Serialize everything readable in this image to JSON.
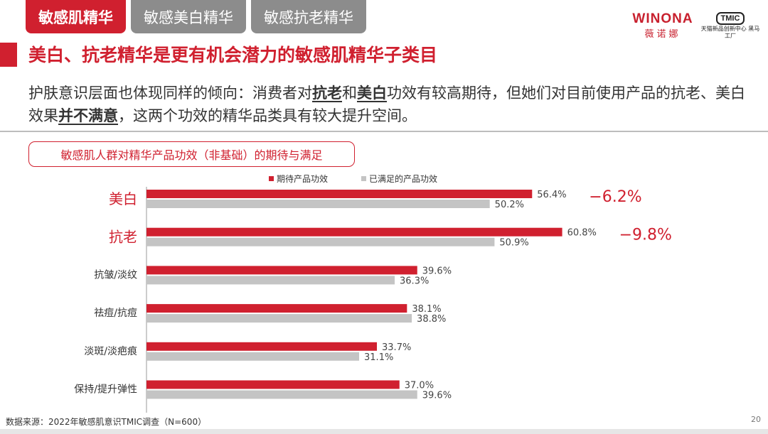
{
  "tabs": [
    {
      "label": "敏感肌精华"
    },
    {
      "label": "敏感美白精华"
    },
    {
      "label": "敏感抗老精华"
    }
  ],
  "brand": {
    "name_en": "WINONA",
    "name_cn": "薇诺娜"
  },
  "tmic": {
    "name": "TMIC",
    "sub": "天猫新品创新中心 黑马工厂"
  },
  "title": "美白、抗老精华是更有机会潜力的敏感肌精华子类目",
  "description": {
    "p1": "护肤意识层面也体现同样的倾向：消费者对",
    "hl1": "抗老",
    "p2": "和",
    "hl2": "美白",
    "p3": "功效有较高期待，但她们对目前使用产品的抗老、美白效果",
    "hl3": "并不满意",
    "p4": "，这两个功效的精华品类具有较大提升空间。"
  },
  "chart_data": {
    "type": "bar",
    "orientation": "horizontal",
    "title": "敏感肌人群对精华产品功效（非基础）的期待与满足",
    "legend_position": "top",
    "categories": [
      "美白",
      "抗老",
      "抗皱/淡纹",
      "祛痘/抗痘",
      "淡斑/淡疤痕",
      "保持/提升弹性"
    ],
    "highlight_categories": [
      "美白",
      "抗老"
    ],
    "series": [
      {
        "name": "期待产品功效",
        "color": "#d0202f",
        "values": [
          56.4,
          60.8,
          39.6,
          38.1,
          33.7,
          37.0
        ],
        "labels": [
          "56.4%",
          "60.8%",
          "39.6%",
          "38.1%",
          "33.7%",
          "37.0%"
        ]
      },
      {
        "name": "已满足的产品功效",
        "color": "#c4c4c4",
        "values": [
          50.2,
          50.9,
          36.3,
          38.8,
          31.1,
          39.6
        ],
        "labels": [
          "50.2%",
          "50.9%",
          "36.3%",
          "38.8%",
          "31.1%",
          "39.6%"
        ]
      }
    ],
    "annotations": [
      {
        "category": "美白",
        "text": "−6.2%"
      },
      {
        "category": "抗老",
        "text": "−9.8%"
      }
    ],
    "xlim": [
      0,
      70
    ]
  },
  "footer": {
    "source": "数据来源：2022年敏感肌意识TMIC调查（N=600）",
    "page": "20"
  }
}
